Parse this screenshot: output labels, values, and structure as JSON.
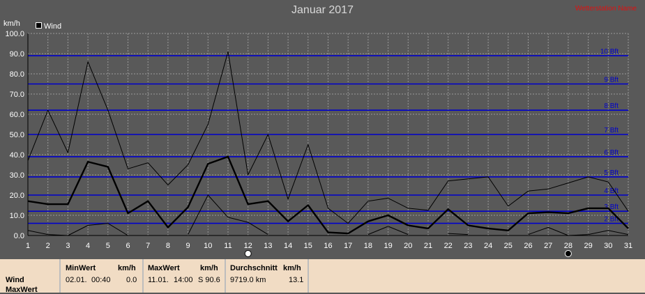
{
  "title": "Januar 2017",
  "watermark": "Wetterstation Name",
  "legend": {
    "label": "Wind"
  },
  "colors": {
    "background": "#595959",
    "grid": "#9a9a9a",
    "beaufort_line": "#0000cc",
    "series": "#000000",
    "axis_text": "#ffffff"
  },
  "chart_data": {
    "type": "line",
    "title": "Januar 2017",
    "ylabel": "km/h",
    "xlabel": "",
    "ylim": [
      0,
      100
    ],
    "y_ticks": [
      "0.0",
      "10.0",
      "20.0",
      "30.0",
      "40.0",
      "50.0",
      "60.0",
      "70.0",
      "80.0",
      "90.0",
      "100.0"
    ],
    "x": [
      1,
      2,
      3,
      4,
      5,
      6,
      7,
      8,
      9,
      10,
      11,
      12,
      13,
      14,
      15,
      16,
      17,
      18,
      19,
      20,
      21,
      22,
      23,
      24,
      25,
      26,
      27,
      28,
      29,
      30,
      31
    ],
    "series": [
      {
        "name": "Wind",
        "values": [
          17,
          15.5,
          15.5,
          36.5,
          34,
          11,
          17,
          4,
          14,
          35.5,
          39,
          15.5,
          17,
          7,
          15,
          1.5,
          1,
          7,
          10,
          5,
          3.5,
          13,
          5,
          3.5,
          2.5,
          11,
          11.5,
          11,
          13.5,
          13.5,
          3.5
        ]
      },
      {
        "values": [
          37,
          62,
          41,
          86,
          62,
          33,
          36,
          25,
          35,
          55,
          91,
          30,
          50,
          18,
          45,
          13.5,
          6,
          17,
          18.5,
          13.5,
          12.5,
          27,
          28,
          29,
          14.5,
          22,
          23,
          26,
          29,
          26.5,
          12
        ]
      },
      {
        "values": [
          2.5,
          0.5,
          0,
          5,
          6,
          0,
          null,
          null,
          0.5,
          20,
          9,
          6.5,
          0.5,
          null,
          null,
          null,
          null,
          0.5,
          4.5,
          0.5,
          null,
          1,
          0.5,
          null,
          null,
          0.5,
          4,
          0,
          0.5,
          2.5,
          0.5
        ]
      }
    ],
    "beaufort": [
      {
        "label": "2 Bft",
        "value": 6
      },
      {
        "label": "3 Bft",
        "value": 12
      },
      {
        "label": "4 Bft",
        "value": 20
      },
      {
        "label": "5 Bft",
        "value": 29
      },
      {
        "label": "6 Bft",
        "value": 39
      },
      {
        "label": "7 Bft",
        "value": 50
      },
      {
        "label": "8 Bft",
        "value": 62
      },
      {
        "label": "9 Bft",
        "value": 75
      },
      {
        "label": "10 Bft",
        "value": 89
      }
    ],
    "moon_markers": [
      {
        "day": 12,
        "phase": "full-moon"
      },
      {
        "day": 28,
        "phase": "new-moon"
      }
    ]
  },
  "footer": {
    "rows": [
      "Wind",
      "MaxWert"
    ],
    "min": {
      "header": "MinWert",
      "unit": "km/h",
      "date": "02.01.",
      "time": "00:40",
      "value": "0.0"
    },
    "max": {
      "header": "MaxWert",
      "unit": "km/h",
      "date": "11.01.",
      "time": "14:00",
      "value": "S 90.6"
    },
    "avg": {
      "header": "Durchschnitt",
      "unit": "km/h",
      "distance": "9719.0 km",
      "value": "13.1"
    }
  }
}
